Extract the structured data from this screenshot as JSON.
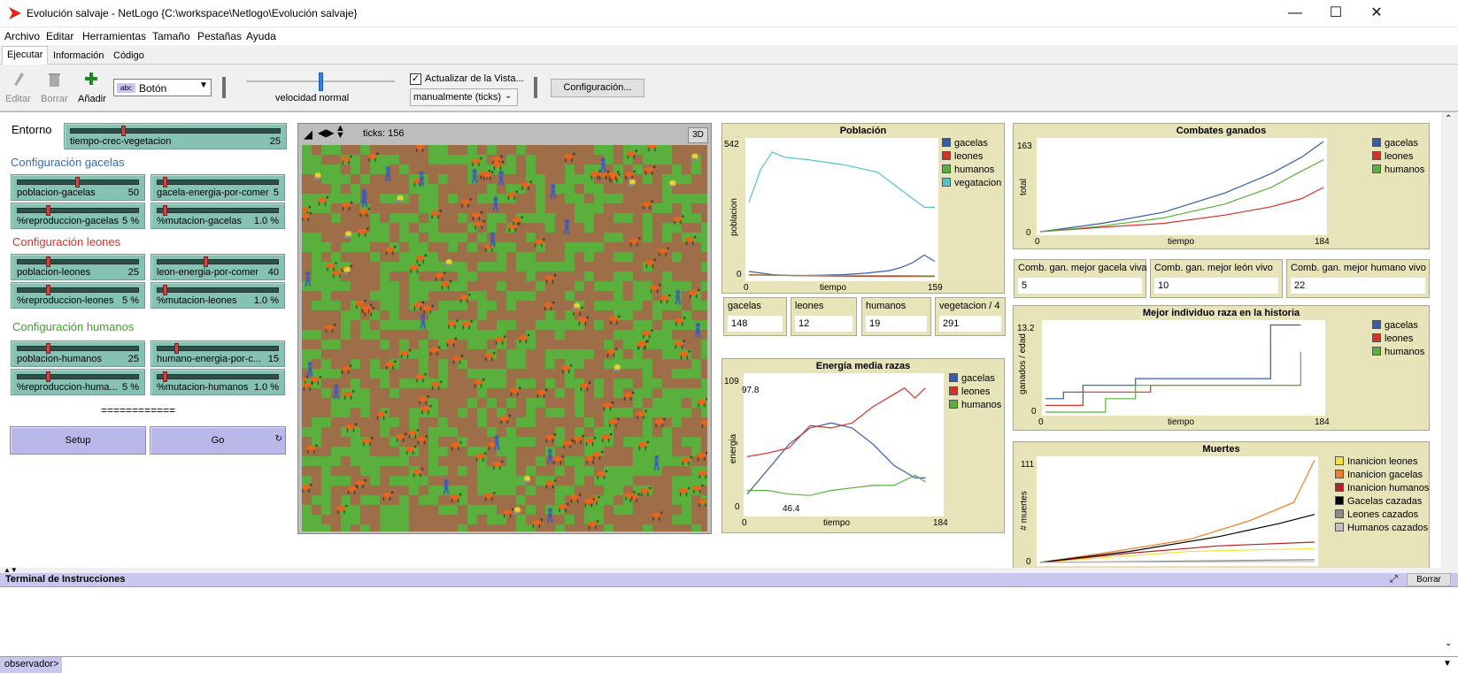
{
  "window": {
    "title": "Evolución salvaje - NetLogo {C:\\workspace\\Netlogo\\Evolución salvaje}"
  },
  "menu": [
    "Archivo",
    "Editar",
    "Herramientas",
    "Tamaño",
    "Pestañas",
    "Ayuda"
  ],
  "tabs": [
    "Ejecutar",
    "Información",
    "Código"
  ],
  "toolbar": {
    "edit": "Editar",
    "delete": "Borrar",
    "add": "Añadir",
    "widget_type": "Botón",
    "widget_type_icon": "abc",
    "speed_label": "velocidad normal",
    "speed": 0.5,
    "update_view": "Actualizar de la Vista...",
    "update_checked": true,
    "update_mode": "manualmente (ticks)",
    "settings": "Configuración..."
  },
  "controls": {
    "entorno": "Entorno",
    "tiempo": {
      "label": "tiempo-crec-vegetacion",
      "value": "25",
      "pos": 0.25
    },
    "gacelas_title": "Configuración gacelas",
    "leones_title": "Configuración leones",
    "humanos_title": "Configuración humanos",
    "sliders": [
      {
        "label": "poblacion-gacelas",
        "value": "50",
        "pos": 0.5
      },
      {
        "label": "gacela-energia-por-comer",
        "value": "5",
        "pos": 0.05
      },
      {
        "label": "%reproduccion-gacelas",
        "value": "5 %",
        "pos": 0.25
      },
      {
        "label": "%mutacion-gacelas",
        "value": "1.0 %",
        "pos": 0.05
      },
      {
        "label": "poblacion-leones",
        "value": "25",
        "pos": 0.25
      },
      {
        "label": "leon-energia-por-comer",
        "value": "40",
        "pos": 0.4
      },
      {
        "label": "%reproduccion-leones",
        "value": "5 %",
        "pos": 0.25
      },
      {
        "label": "%mutacion-leones",
        "value": "1.0 %",
        "pos": 0.05
      },
      {
        "label": "poblacion-humanos",
        "value": "25",
        "pos": 0.25
      },
      {
        "label": "humano-energia-por-c...",
        "value": "15",
        "pos": 0.15
      },
      {
        "label": "%reproduccion-huma...",
        "value": "5 %",
        "pos": 0.25
      },
      {
        "label": "%mutacion-humanos",
        "value": "1.0 %",
        "pos": 0.05
      }
    ],
    "divider": "============",
    "setup": "Setup",
    "go": "Go"
  },
  "view": {
    "ticks": "ticks: 156",
    "threed": "3D"
  },
  "colors": {
    "gacelas": "#345da5",
    "leones": "#d73229",
    "humanos": "#59b03c",
    "vegetacion": "#54c4c4",
    "grass": "#59b03c",
    "soil": "#9d6e48",
    "panel": "#e6e4b8",
    "slider": "#85c2b3",
    "button": "#bab8e8"
  },
  "monitors": [
    {
      "label": "gacelas",
      "value": "148"
    },
    {
      "label": "leones",
      "value": "12"
    },
    {
      "label": "humanos",
      "value": "19"
    },
    {
      "label": "vegetacion / 4",
      "value": "291"
    },
    {
      "label": "Comb. gan. mejor gacela viva",
      "value": "5"
    },
    {
      "label": "Comb. gan. mejor león vivo",
      "value": "10"
    },
    {
      "label": "Comb. gan. mejor humano vivo",
      "value": "22"
    }
  ],
  "chart_data": [
    {
      "type": "line",
      "title": "Población",
      "xlabel": "tiempo",
      "ylabel": "poblacion",
      "xlim": [
        0,
        159
      ],
      "ylim": [
        0,
        542
      ],
      "series": [
        {
          "name": "gacelas",
          "color": "#345da5",
          "x": [
            0,
            20,
            40,
            60,
            80,
            100,
            120,
            130,
            140,
            150,
            159
          ],
          "y": [
            25,
            12,
            8,
            10,
            12,
            18,
            28,
            40,
            60,
            90,
            65
          ]
        },
        {
          "name": "leones",
          "color": "#d73229",
          "x": [
            0,
            40,
            80,
            120,
            159
          ],
          "y": [
            12,
            8,
            6,
            5,
            5
          ]
        },
        {
          "name": "humanos",
          "color": "#59b03c",
          "x": [
            0,
            40,
            80,
            120,
            159
          ],
          "y": [
            10,
            9,
            8,
            8,
            7
          ]
        },
        {
          "name": "vegatacion",
          "color": "#54c4c4",
          "x": [
            0,
            10,
            20,
            30,
            50,
            80,
            110,
            130,
            150,
            159
          ],
          "y": [
            300,
            430,
            500,
            480,
            470,
            450,
            420,
            350,
            280,
            280
          ]
        }
      ]
    },
    {
      "type": "line",
      "title": "Energía media razas",
      "xlabel": "tiempo",
      "ylabel": "energia",
      "xlim": [
        0,
        184
      ],
      "ylim": [
        0,
        109
      ],
      "annotations": [
        "97.8",
        "46.4"
      ],
      "series": [
        {
          "name": "gacelas",
          "color": "#345da5",
          "x": [
            0,
            20,
            40,
            60,
            80,
            100,
            120,
            140,
            160,
            170
          ],
          "y": [
            15,
            35,
            55,
            68,
            72,
            68,
            55,
            38,
            28,
            28
          ]
        },
        {
          "name": "leones",
          "color": "#d73229",
          "x": [
            0,
            20,
            40,
            60,
            80,
            100,
            120,
            140,
            150,
            160,
            170
          ],
          "y": [
            45,
            48,
            52,
            70,
            68,
            72,
            85,
            95,
            100,
            92,
            100
          ]
        },
        {
          "name": "humanos",
          "color": "#59b03c",
          "x": [
            0,
            20,
            40,
            60,
            80,
            100,
            120,
            140,
            160,
            170
          ],
          "y": [
            18,
            18,
            15,
            14,
            18,
            20,
            22,
            22,
            30,
            25
          ]
        }
      ]
    },
    {
      "type": "line",
      "title": "Combates ganados",
      "xlabel": "tiempo",
      "ylabel": "total",
      "xlim": [
        0,
        184
      ],
      "ylim": [
        0,
        163
      ],
      "series": [
        {
          "name": "gacelas",
          "color": "#345da5",
          "x": [
            0,
            40,
            80,
            120,
            150,
            170,
            184
          ],
          "y": [
            0,
            15,
            35,
            70,
            105,
            135,
            163
          ]
        },
        {
          "name": "leones",
          "color": "#d73229",
          "x": [
            0,
            40,
            80,
            120,
            150,
            170,
            184
          ],
          "y": [
            0,
            8,
            15,
            30,
            45,
            60,
            80
          ]
        },
        {
          "name": "humanos",
          "color": "#59b03c",
          "x": [
            0,
            40,
            80,
            120,
            150,
            170,
            184
          ],
          "y": [
            0,
            10,
            25,
            50,
            80,
            110,
            130
          ]
        }
      ]
    },
    {
      "type": "line",
      "title": "Mejor individuo raza en la historia",
      "xlabel": "tiempo",
      "ylabel": "ganados / edad",
      "xlim": [
        0,
        184
      ],
      "ylim": [
        0,
        13.2
      ],
      "series": [
        {
          "name": "gacelas",
          "color": "#345da5",
          "x": [
            0,
            12,
            12,
            25,
            25,
            60,
            60,
            150,
            150,
            170
          ],
          "y": [
            2,
            2,
            3,
            3,
            4,
            4,
            5,
            5,
            13,
            13
          ]
        },
        {
          "name": "leones",
          "color": "#d73229",
          "x": [
            0,
            25,
            25,
            70,
            70,
            170
          ],
          "y": [
            1,
            1,
            3,
            3,
            4,
            4
          ]
        },
        {
          "name": "humanos",
          "color": "#59b03c",
          "x": [
            0,
            40,
            40,
            60,
            60,
            170,
            170
          ],
          "y": [
            0,
            0,
            2,
            2,
            4,
            4,
            9
          ]
        }
      ]
    },
    {
      "type": "line",
      "title": "Muertes",
      "xlabel": "tiempo",
      "ylabel": "# muertes",
      "xlim": [
        0,
        184
      ],
      "ylim": [
        0,
        111
      ],
      "series": [
        {
          "name": "Inanicion leones",
          "color": "#f2e43a",
          "x": [
            0,
            100,
            184
          ],
          "y": [
            0,
            12,
            15
          ]
        },
        {
          "name": "Inanicion gacelas",
          "color": "#f07d27",
          "x": [
            0,
            50,
            100,
            140,
            170,
            184
          ],
          "y": [
            0,
            12,
            25,
            45,
            65,
            111
          ]
        },
        {
          "name": "Inanicion humanos",
          "color": "#b52020",
          "x": [
            0,
            60,
            120,
            184
          ],
          "y": [
            0,
            10,
            18,
            22
          ]
        },
        {
          "name": "Gacelas cazadas",
          "color": "#000000",
          "x": [
            0,
            60,
            120,
            160,
            184
          ],
          "y": [
            0,
            12,
            28,
            42,
            52
          ]
        },
        {
          "name": "Leones cazados",
          "color": "#8a8a8a",
          "x": [
            0,
            184
          ],
          "y": [
            0,
            3
          ]
        },
        {
          "name": "Humanos cazados",
          "color": "#c0c0c0",
          "x": [
            0,
            184
          ],
          "y": [
            0,
            1
          ]
        }
      ]
    }
  ],
  "terminal": {
    "title": "Terminal de Instrucciones",
    "clear": "Borrar",
    "prompt": "observador>"
  }
}
